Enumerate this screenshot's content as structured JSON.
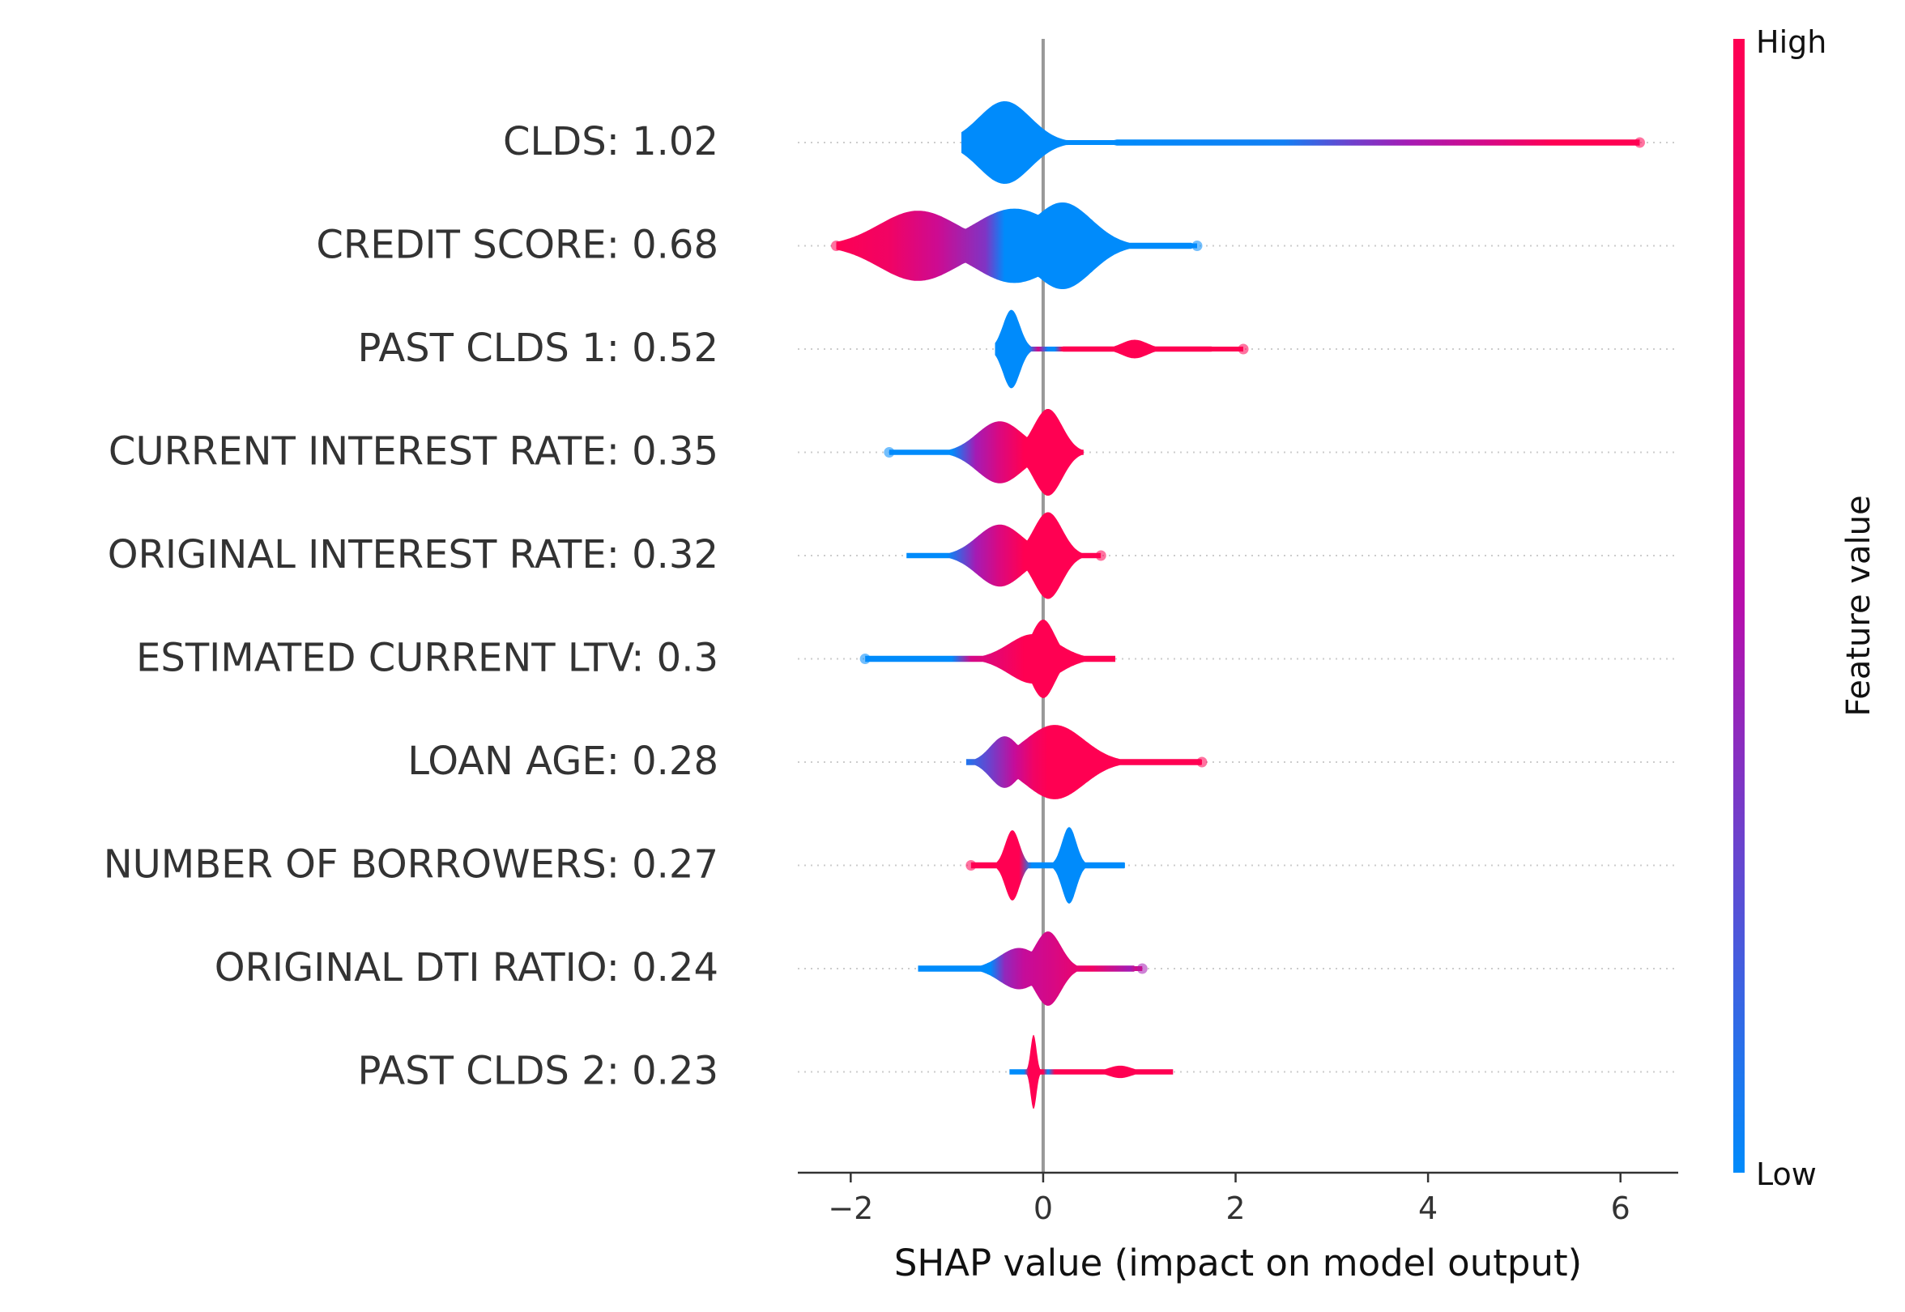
{
  "chart_data": {
    "type": "violin",
    "xlabel": "SHAP value (impact on model output)",
    "xlim": [
      -2.55,
      6.6
    ],
    "xticks": [
      -2,
      0,
      2,
      4,
      6
    ],
    "xtick_labels": [
      "−2",
      "0",
      "2",
      "4",
      "6"
    ],
    "colorbar": {
      "label": "Feature value",
      "high_label": "High",
      "low_label": "Low",
      "low_color": "#008bfb",
      "mid_color": "#b70fac",
      "high_color": "#ff0052"
    },
    "features": [
      {
        "label": "CLDS: 1.02",
        "name": "CLDS",
        "mean_abs_shap": 1.02,
        "min": -0.85,
        "max": 6.2,
        "modes": [
          {
            "x": -0.4,
            "width": 0.4,
            "height": 0.4,
            "color": 0.0
          }
        ],
        "tail": {
          "x0": 0.75,
          "x1": 6.2,
          "thickness": 0.06
        },
        "outliers": [
          6.2
        ],
        "color_stops": [
          [
            -0.9,
            0.0
          ],
          [
            0.7,
            0.0
          ],
          [
            2.5,
            0.05
          ],
          [
            3.2,
            0.3
          ],
          [
            3.8,
            0.45
          ],
          [
            4.6,
            0.7
          ],
          [
            5.3,
            1.0
          ],
          [
            6.3,
            1.0
          ]
        ]
      },
      {
        "label": "CREDIT SCORE: 0.68",
        "name": "CREDIT SCORE",
        "mean_abs_shap": 0.68,
        "min": -2.15,
        "max": 1.6,
        "modes": [
          {
            "x": -1.3,
            "width": 0.6,
            "height": 0.34,
            "color": 0.6
          },
          {
            "x": -0.3,
            "width": 0.6,
            "height": 0.36,
            "color": 0.1
          },
          {
            "x": 0.2,
            "width": 0.45,
            "height": 0.42,
            "color": 0.0
          }
        ],
        "tail": {
          "x0": -2.15,
          "x1": 1.55,
          "thickness": 0.06
        },
        "outliers": [
          -2.15,
          1.6
        ],
        "color_stops": [
          [
            -2.2,
            1.0
          ],
          [
            -1.6,
            0.9
          ],
          [
            -1.1,
            0.65
          ],
          [
            -0.6,
            0.35
          ],
          [
            -0.4,
            0.0
          ],
          [
            1.7,
            0.0
          ]
        ]
      },
      {
        "label": "PAST CLDS 1: 0.52",
        "name": "PAST CLDS 1",
        "mean_abs_shap": 0.52,
        "min": -0.5,
        "max": 2.08,
        "modes": [
          {
            "x": -0.33,
            "width": 0.13,
            "height": 0.38,
            "color": 0.0
          },
          {
            "x": 0.95,
            "width": 0.2,
            "height": 0.09,
            "color": 1.0
          }
        ],
        "tail": {
          "x0": 0.2,
          "x1": 1.75,
          "thickness": 0.05
        },
        "outliers": [
          2.08
        ],
        "color_stops": [
          [
            -0.55,
            0.0
          ],
          [
            -0.15,
            0.0
          ],
          [
            -0.05,
            0.7
          ],
          [
            0.05,
            0.0
          ],
          [
            0.12,
            0.0
          ],
          [
            0.2,
            1.0
          ],
          [
            2.1,
            1.0
          ]
        ]
      },
      {
        "label": "CURRENT INTEREST RATE: 0.35",
        "name": "CURRENT INTEREST RATE",
        "mean_abs_shap": 0.35,
        "min": -1.6,
        "max": 0.42,
        "modes": [
          {
            "x": -0.45,
            "width": 0.35,
            "height": 0.3,
            "color": 0.7
          },
          {
            "x": 0.05,
            "width": 0.22,
            "height": 0.42,
            "color": 1.0
          }
        ],
        "tail": {
          "x0": -1.6,
          "x1": 0.42,
          "thickness": 0.05
        },
        "outliers": [
          -1.6
        ],
        "color_stops": [
          [
            -1.7,
            0.0
          ],
          [
            -0.95,
            0.0
          ],
          [
            -0.7,
            0.45
          ],
          [
            -0.45,
            0.75
          ],
          [
            -0.2,
            1.0
          ],
          [
            0.5,
            1.0
          ]
        ]
      },
      {
        "label": "ORIGINAL INTEREST RATE: 0.32",
        "name": "ORIGINAL INTEREST RATE",
        "mean_abs_shap": 0.32,
        "min": -1.42,
        "max": 0.6,
        "modes": [
          {
            "x": -0.45,
            "width": 0.35,
            "height": 0.3,
            "color": 0.7
          },
          {
            "x": 0.05,
            "width": 0.22,
            "height": 0.42,
            "color": 1.0
          }
        ],
        "tail": {
          "x0": -1.42,
          "x1": 0.6,
          "thickness": 0.05
        },
        "outliers": [
          0.6
        ],
        "color_stops": [
          [
            -1.5,
            0.0
          ],
          [
            -1.0,
            0.0
          ],
          [
            -0.7,
            0.45
          ],
          [
            -0.45,
            0.75
          ],
          [
            -0.2,
            1.0
          ],
          [
            0.7,
            1.0
          ]
        ]
      },
      {
        "label": "ESTIMATED CURRENT LTV: 0.3",
        "name": "ESTIMATED CURRENT LTV",
        "mean_abs_shap": 0.3,
        "min": -1.85,
        "max": 0.75,
        "modes": [
          {
            "x": -0.1,
            "width": 0.38,
            "height": 0.24,
            "color": 1.0
          },
          {
            "x": 0.0,
            "width": 0.18,
            "height": 0.38,
            "color": 1.0
          }
        ],
        "tail": {
          "x0": -1.85,
          "x1": 0.75,
          "thickness": 0.06
        },
        "outliers": [
          -1.85
        ],
        "color_stops": [
          [
            -1.95,
            0.0
          ],
          [
            -0.95,
            0.0
          ],
          [
            -0.75,
            0.7
          ],
          [
            -0.45,
            0.85
          ],
          [
            -0.2,
            1.0
          ],
          [
            0.8,
            1.0
          ]
        ]
      },
      {
        "label": "LOAN AGE: 0.28",
        "name": "LOAN AGE",
        "mean_abs_shap": 0.28,
        "min": -0.8,
        "max": 1.65,
        "modes": [
          {
            "x": -0.4,
            "width": 0.22,
            "height": 0.25,
            "color": 0.4
          },
          {
            "x": 0.12,
            "width": 0.45,
            "height": 0.36,
            "color": 1.0
          }
        ],
        "tail": {
          "x0": -0.8,
          "x1": 1.65,
          "thickness": 0.06
        },
        "outliers": [
          1.65
        ],
        "color_stops": [
          [
            -0.9,
            0.0
          ],
          [
            -0.55,
            0.3
          ],
          [
            -0.3,
            0.6
          ],
          [
            -0.1,
            0.9
          ],
          [
            0.05,
            1.0
          ],
          [
            1.7,
            1.0
          ]
        ]
      },
      {
        "label": "NUMBER OF BORROWERS: 0.27",
        "name": "NUMBER OF BORROWERS",
        "mean_abs_shap": 0.27,
        "min": -0.75,
        "max": 0.85,
        "modes": [
          {
            "x": -0.32,
            "width": 0.11,
            "height": 0.34,
            "color": 1.0
          },
          {
            "x": 0.27,
            "width": 0.11,
            "height": 0.37,
            "color": 0.0
          }
        ],
        "tail": {
          "x0": -0.75,
          "x1": 0.85,
          "thickness": 0.06
        },
        "outliers": [
          -0.75
        ],
        "color_stops": [
          [
            -0.8,
            1.0
          ],
          [
            -0.25,
            1.0
          ],
          [
            -0.12,
            0.0
          ],
          [
            0.9,
            0.0
          ]
        ]
      },
      {
        "label": "ORIGINAL DTI RATIO: 0.24",
        "name": "ORIGINAL DTI RATIO",
        "mean_abs_shap": 0.24,
        "min": -1.3,
        "max": 1.03,
        "modes": [
          {
            "x": -0.25,
            "width": 0.3,
            "height": 0.2,
            "color": 0.55
          },
          {
            "x": 0.05,
            "width": 0.2,
            "height": 0.36,
            "color": 0.7
          }
        ],
        "tail": {
          "x0": -1.3,
          "x1": 0.95,
          "thickness": 0.06
        },
        "outliers": [
          1.03
        ],
        "color_stops": [
          [
            -1.35,
            0.0
          ],
          [
            -0.55,
            0.0
          ],
          [
            -0.4,
            0.4
          ],
          [
            -0.2,
            0.6
          ],
          [
            0.1,
            0.72
          ],
          [
            0.5,
            0.9
          ],
          [
            0.9,
            0.45
          ],
          [
            1.05,
            1.0
          ]
        ]
      },
      {
        "label": "PAST CLDS 2: 0.23",
        "name": "PAST CLDS 2",
        "mean_abs_shap": 0.23,
        "min": -0.35,
        "max": 1.35,
        "modes": [
          {
            "x": -0.1,
            "width": 0.045,
            "height": 0.36,
            "color": 1.0
          },
          {
            "x": 0.8,
            "width": 0.18,
            "height": 0.06,
            "color": 1.0
          }
        ],
        "tail": {
          "x0": -0.35,
          "x1": 1.35,
          "thickness": 0.05
        },
        "outliers": [],
        "color_stops": [
          [
            -0.4,
            0.0
          ],
          [
            -0.2,
            0.0
          ],
          [
            -0.15,
            1.0
          ],
          [
            0.0,
            1.0
          ],
          [
            0.05,
            0.0
          ],
          [
            0.12,
            1.0
          ],
          [
            1.4,
            1.0
          ]
        ]
      }
    ]
  }
}
